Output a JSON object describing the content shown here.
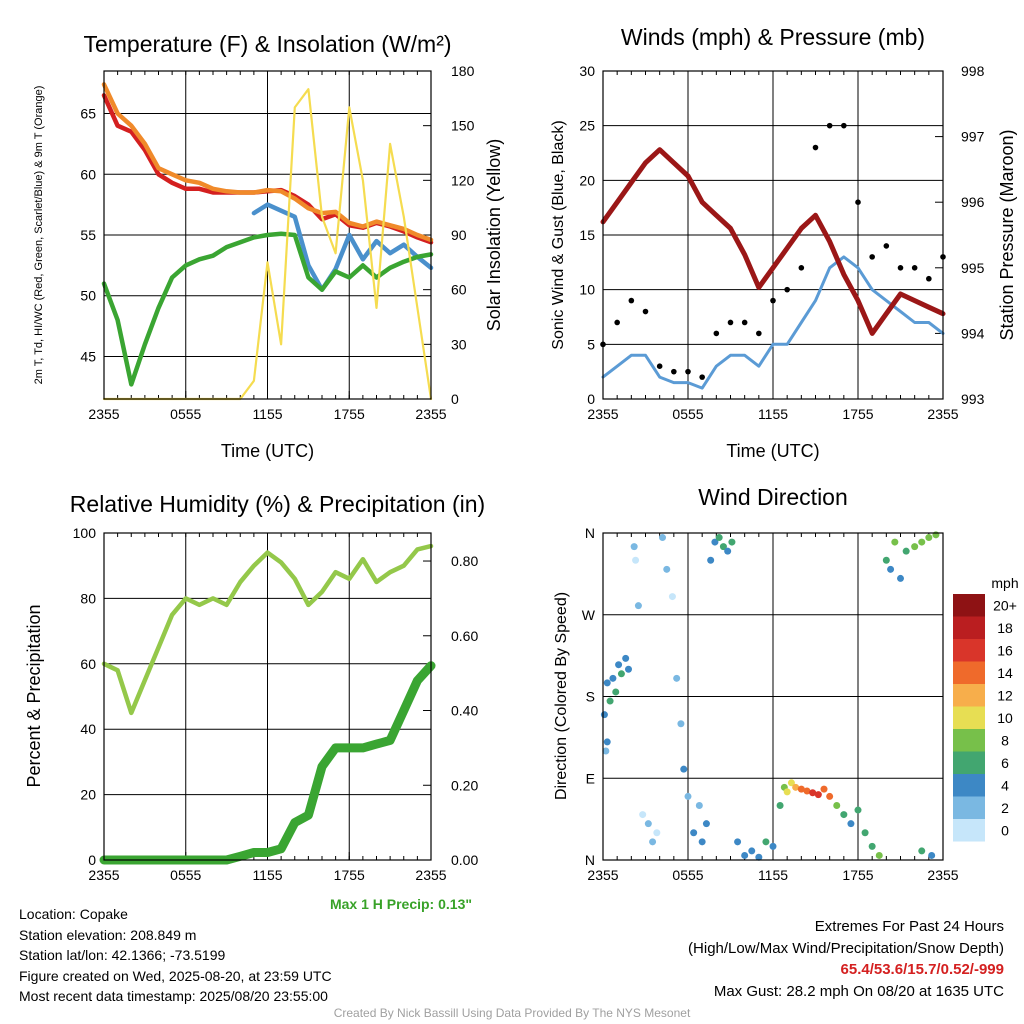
{
  "footer": {
    "location": "Location: Copake",
    "elevation": "Station elevation: 208.849 m",
    "latlon": "Station lat/lon: 42.1366; -73.5199",
    "created": "Figure created on Wed, 2025-08-20, at 23:59 UTC",
    "recent": "Most recent data timestamp: 2025/08/20 23:55:00",
    "extremes_title": "Extremes For Past 24 Hours",
    "extremes_sub": "(High/Low/Max Wind/Precipitation/Snow Depth)",
    "extremes_values": "65.4/53.6/15.7/0.52/-999",
    "max_gust": "Max Gust: 28.2 mph On 08/20 at 1635 UTC",
    "credit": "Created By Nick Bassill Using Data Provided By The NYS Mesonet",
    "max_precip": "Max 1 H Precip: 0.13\""
  },
  "colors": {
    "temp_red": "#d42020",
    "temp_green": "#3aa532",
    "temp_blue": "#4a90cc",
    "temp_orange": "#f08a2a",
    "insolation": "#f5dc50",
    "wind_blue": "#5b9bd5",
    "gust_black": "#000000",
    "pressure": "#9b1717",
    "rh_green": "#94c84a",
    "precip_green": "#3aa532"
  },
  "chart_data": [
    {
      "type": "line",
      "title": "Temperature (F) & Insolation (W/m²)",
      "xlabel": "Time (UTC)",
      "ylabel": "2m T, Td, HI/WC (Red, Green, Scarlet/Blue) & 9m T (Orange)",
      "ylabel_right": "Solar Insolation (Yellow)",
      "x_ticks": [
        "2355",
        "0555",
        "1155",
        "1755",
        "2355"
      ],
      "x": [
        0,
        1,
        2,
        3,
        4,
        5,
        6,
        7,
        8,
        9,
        10,
        11,
        12,
        13,
        14,
        15,
        16,
        17,
        18,
        19,
        20,
        21,
        22,
        23,
        24
      ],
      "ylim": [
        41.5,
        68.5
      ],
      "y_ticks": [
        45,
        50,
        55,
        60,
        65
      ],
      "ylim_right": [
        0,
        180
      ],
      "y_ticks_right": [
        0,
        30,
        60,
        90,
        120,
        150,
        180
      ],
      "series": [
        {
          "name": "2m T",
          "color": "#d42020",
          "values": [
            66.5,
            64,
            63.5,
            62,
            60,
            59.3,
            58.8,
            58.8,
            58.5,
            58.5,
            58.5,
            58.5,
            58.6,
            58.7,
            58.2,
            57.5,
            56.3,
            56.7,
            55.8,
            55.6,
            56.0,
            55.7,
            55.3,
            54.8,
            54.4
          ]
        },
        {
          "name": "9m T",
          "color": "#f08a2a",
          "values": [
            67.4,
            65,
            64,
            62.5,
            60.5,
            60,
            59.5,
            59.3,
            58.8,
            58.6,
            58.5,
            58.5,
            58.7,
            58.6,
            58.0,
            57.2,
            56.8,
            56.9,
            56.0,
            55.7,
            56.1,
            55.8,
            55.5,
            55.0,
            54.6
          ]
        },
        {
          "name": "HI/WC",
          "color": "#4a90cc",
          "values": [
            null,
            null,
            null,
            null,
            null,
            null,
            null,
            null,
            null,
            null,
            null,
            56.8,
            57.5,
            57.0,
            56.5,
            52.5,
            50.5,
            52.2,
            55.0,
            53.0,
            54.5,
            53.5,
            54.2,
            53.2,
            52.3
          ]
        },
        {
          "name": "2m Td",
          "color": "#3aa532",
          "values": [
            51.0,
            48.0,
            42.7,
            46.0,
            49.0,
            51.5,
            52.5,
            53.0,
            53.3,
            54.0,
            54.4,
            54.8,
            55.0,
            55.1,
            55.0,
            51.5,
            50.5,
            52.0,
            51.5,
            52.5,
            51.5,
            52.3,
            52.8,
            53.2,
            53.4
          ]
        },
        {
          "name": "Solar Insolation",
          "color": "#f5dc50",
          "axis": "right",
          "values": [
            0,
            0,
            0,
            0,
            0,
            0,
            0,
            0,
            0,
            0,
            0,
            10,
            75,
            30,
            160,
            170,
            100,
            80,
            160,
            120,
            50,
            140,
            100,
            50,
            0
          ]
        }
      ]
    },
    {
      "type": "line",
      "title": "Winds (mph) & Pressure (mb)",
      "xlabel": "Time (UTC)",
      "ylabel": "Sonic Wind & Gust (Blue, Black)",
      "ylabel_right": "Station Pressure (Maroon)",
      "x_ticks": [
        "2355",
        "0555",
        "1155",
        "1755",
        "2355"
      ],
      "x": [
        0,
        1,
        2,
        3,
        4,
        5,
        6,
        7,
        8,
        9,
        10,
        11,
        12,
        13,
        14,
        15,
        16,
        17,
        18,
        19,
        20,
        21,
        22,
        23,
        24
      ],
      "ylim": [
        0,
        30
      ],
      "y_ticks": [
        0,
        5,
        10,
        15,
        20,
        25,
        30
      ],
      "ylim_right": [
        993,
        998
      ],
      "y_ticks_right": [
        993,
        994,
        995,
        996,
        997,
        998
      ],
      "series": [
        {
          "name": "Sonic Wind",
          "color": "#5b9bd5",
          "values": [
            2,
            3,
            4,
            4,
            2,
            1.5,
            1.5,
            1,
            3,
            4,
            4,
            3,
            5,
            5,
            7,
            9,
            12,
            13,
            12,
            10,
            9,
            8,
            7,
            7,
            6
          ]
        },
        {
          "name": "Gust",
          "color": "#000000",
          "values": [
            5,
            7,
            9,
            8,
            3,
            2.5,
            2.5,
            2,
            6,
            7,
            7,
            6,
            9,
            10,
            12,
            23,
            25,
            25,
            18,
            13,
            14,
            12,
            12,
            11,
            13
          ]
        },
        {
          "name": "Station Pressure",
          "color": "#9b1717",
          "axis": "right",
          "values": [
            995.7,
            996.0,
            996.3,
            996.6,
            996.8,
            996.6,
            996.4,
            996.0,
            995.8,
            995.6,
            995.2,
            994.7,
            995.0,
            995.3,
            995.6,
            995.8,
            995.4,
            994.9,
            994.5,
            994.0,
            994.3,
            994.6,
            994.5,
            994.4,
            994.3
          ]
        }
      ]
    },
    {
      "type": "line",
      "title": "Relative Humidity (%) & Precipitation (in)",
      "ylabel": "Percent & Precipitation",
      "x_ticks": [
        "2355",
        "0555",
        "1155",
        "1755",
        "2355"
      ],
      "x": [
        0,
        1,
        2,
        3,
        4,
        5,
        6,
        7,
        8,
        9,
        10,
        11,
        12,
        13,
        14,
        15,
        16,
        17,
        18,
        19,
        20,
        21,
        22,
        23,
        24
      ],
      "ylim": [
        0,
        100
      ],
      "y_ticks": [
        0,
        20,
        40,
        60,
        80,
        100
      ],
      "ylim_right": [
        0,
        0.875
      ],
      "y_ticks_right": [
        0.0,
        0.2,
        0.4,
        0.6,
        0.8
      ],
      "y_ticks_right_labels": [
        "0.00",
        "0.20",
        "0.40",
        "0.60",
        "0.80"
      ],
      "series": [
        {
          "name": "Relative Humidity",
          "color": "#94c84a",
          "values": [
            60,
            58,
            45,
            55,
            65,
            75,
            80,
            78,
            80,
            78,
            85,
            90,
            94,
            91,
            86,
            78,
            82,
            88,
            86,
            92,
            85,
            88,
            90,
            95,
            96
          ]
        },
        {
          "name": "Precipitation",
          "color": "#3aa532",
          "axis": "right",
          "values": [
            0,
            0,
            0,
            0,
            0,
            0,
            0,
            0,
            0,
            0,
            0.01,
            0.02,
            0.02,
            0.03,
            0.1,
            0.12,
            0.25,
            0.3,
            0.3,
            0.3,
            0.31,
            0.32,
            0.4,
            0.48,
            0.52
          ]
        }
      ]
    },
    {
      "type": "scatter",
      "title": "Wind Direction",
      "ylabel": "Direction (Colored By Speed)",
      "x_ticks": [
        "2355",
        "0555",
        "1155",
        "1755",
        "2355"
      ],
      "y_ticks": [
        "N",
        "E",
        "S",
        "W",
        "N"
      ],
      "ylim": [
        0,
        360
      ],
      "colorbar_title": "mph",
      "colorbar_labels": [
        "0",
        "2",
        "4",
        "6",
        "8",
        "10",
        "12",
        "14",
        "16",
        "18",
        "20+"
      ],
      "colorbar_colors": [
        "#c6e6fa",
        "#7ab8e2",
        "#3d88c5",
        "#42a670",
        "#77c04a",
        "#e7de53",
        "#f7ae4b",
        "#ef6a2b",
        "#d9352a",
        "#ba1e20",
        "#8e1214"
      ],
      "points": [
        {
          "x": 0.1,
          "y": 160,
          "s": 4
        },
        {
          "x": 0.3,
          "y": 195,
          "s": 4
        },
        {
          "x": 0.5,
          "y": 175,
          "s": 5
        },
        {
          "x": 0.7,
          "y": 200,
          "s": 4
        },
        {
          "x": 0.9,
          "y": 185,
          "s": 6
        },
        {
          "x": 1.1,
          "y": 215,
          "s": 4
        },
        {
          "x": 1.3,
          "y": 205,
          "s": 5
        },
        {
          "x": 1.6,
          "y": 222,
          "s": 4
        },
        {
          "x": 1.8,
          "y": 210,
          "s": 3
        },
        {
          "x": 0.2,
          "y": 120,
          "s": 2
        },
        {
          "x": 0.3,
          "y": 130,
          "s": 3
        },
        {
          "x": 2.2,
          "y": 345,
          "s": 1
        },
        {
          "x": 2.3,
          "y": 330,
          "s": 0
        },
        {
          "x": 2.5,
          "y": 280,
          "s": 1
        },
        {
          "x": 2.8,
          "y": 50,
          "s": 0
        },
        {
          "x": 3.2,
          "y": 40,
          "s": 1
        },
        {
          "x": 3.5,
          "y": 20,
          "s": 1
        },
        {
          "x": 3.8,
          "y": 30,
          "s": 0
        },
        {
          "x": 4.2,
          "y": 355,
          "s": 1
        },
        {
          "x": 4.5,
          "y": 320,
          "s": 2
        },
        {
          "x": 4.9,
          "y": 290,
          "s": 0
        },
        {
          "x": 5.2,
          "y": 200,
          "s": 2
        },
        {
          "x": 5.5,
          "y": 150,
          "s": 2
        },
        {
          "x": 5.7,
          "y": 100,
          "s": 3
        },
        {
          "x": 6.0,
          "y": 70,
          "s": 2
        },
        {
          "x": 6.4,
          "y": 30,
          "s": 3
        },
        {
          "x": 6.8,
          "y": 60,
          "s": 1
        },
        {
          "x": 7.0,
          "y": 20,
          "s": 3
        },
        {
          "x": 7.3,
          "y": 40,
          "s": 4
        },
        {
          "x": 7.6,
          "y": 330,
          "s": 4
        },
        {
          "x": 7.9,
          "y": 350,
          "s": 3
        },
        {
          "x": 8.2,
          "y": 355,
          "s": 5
        },
        {
          "x": 8.5,
          "y": 345,
          "s": 6
        },
        {
          "x": 8.8,
          "y": 340,
          "s": 4
        },
        {
          "x": 9.1,
          "y": 350,
          "s": 5
        },
        {
          "x": 9.5,
          "y": 20,
          "s": 3
        },
        {
          "x": 10.0,
          "y": 5,
          "s": 4
        },
        {
          "x": 10.5,
          "y": 10,
          "s": 3
        },
        {
          "x": 11.0,
          "y": 3,
          "s": 4
        },
        {
          "x": 11.5,
          "y": 20,
          "s": 5
        },
        {
          "x": 12.0,
          "y": 15,
          "s": 4
        },
        {
          "x": 12.5,
          "y": 60,
          "s": 6
        },
        {
          "x": 12.8,
          "y": 80,
          "s": 7
        },
        {
          "x": 13.0,
          "y": 75,
          "s": 9
        },
        {
          "x": 13.3,
          "y": 85,
          "s": 10
        },
        {
          "x": 13.6,
          "y": 80,
          "s": 12
        },
        {
          "x": 14.0,
          "y": 78,
          "s": 13
        },
        {
          "x": 14.4,
          "y": 76,
          "s": 14
        },
        {
          "x": 14.8,
          "y": 74,
          "s": 15
        },
        {
          "x": 15.2,
          "y": 72,
          "s": 16
        },
        {
          "x": 15.6,
          "y": 78,
          "s": 14
        },
        {
          "x": 16.0,
          "y": 70,
          "s": 14
        },
        {
          "x": 16.5,
          "y": 60,
          "s": 7
        },
        {
          "x": 17.0,
          "y": 50,
          "s": 5
        },
        {
          "x": 17.5,
          "y": 40,
          "s": 4
        },
        {
          "x": 18.0,
          "y": 55,
          "s": 6
        },
        {
          "x": 18.5,
          "y": 30,
          "s": 5
        },
        {
          "x": 19.0,
          "y": 15,
          "s": 6
        },
        {
          "x": 19.5,
          "y": 5,
          "s": 7
        },
        {
          "x": 20.0,
          "y": 330,
          "s": 5
        },
        {
          "x": 20.3,
          "y": 320,
          "s": 4
        },
        {
          "x": 20.6,
          "y": 350,
          "s": 7
        },
        {
          "x": 21.0,
          "y": 310,
          "s": 3
        },
        {
          "x": 21.4,
          "y": 340,
          "s": 5
        },
        {
          "x": 22.0,
          "y": 345,
          "s": 7
        },
        {
          "x": 22.5,
          "y": 350,
          "s": 8
        },
        {
          "x": 23.0,
          "y": 355,
          "s": 7
        },
        {
          "x": 23.5,
          "y": 358,
          "s": 8
        },
        {
          "x": 22.5,
          "y": 10,
          "s": 5
        },
        {
          "x": 23.2,
          "y": 5,
          "s": 4
        }
      ]
    }
  ]
}
